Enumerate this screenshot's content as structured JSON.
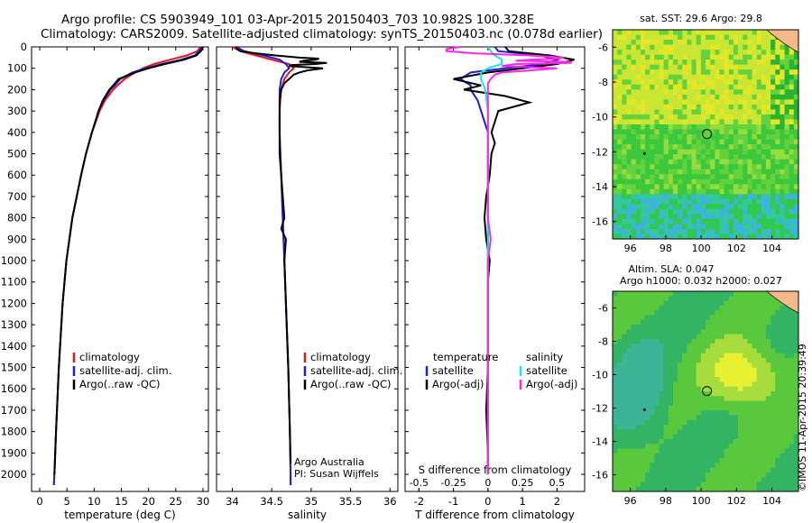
{
  "header": {
    "line1": "Argo profile: CS 5903949_101 03-Apr-2015 20150403_703 10.982S 100.328E",
    "line2": "Climatology: CARS2009. Satellite-adjusted climatology: synTS_20150403.nc (0.078d earlier)"
  },
  "colors": {
    "clim": "#e8141a",
    "sat": "#1d1ddc",
    "argo": "#000000",
    "sal_sat": "#19e6e6",
    "sal_argo": "#ff28e6"
  },
  "chart_data": [
    {
      "type": "line",
      "title": "",
      "xlabel": "temperature (deg C)",
      "ylabel": "",
      "xlim": [
        -1.5,
        31
      ],
      "ylim": [
        2080,
        0
      ],
      "x_ticks": [
        "0",
        "5",
        "10",
        "15",
        "20",
        "25",
        "30"
      ],
      "y_ticks": [
        "0",
        "100",
        "200",
        "300",
        "400",
        "500",
        "600",
        "700",
        "800",
        "900",
        "1000",
        "1100",
        "1200",
        "1300",
        "1400",
        "1500",
        "1600",
        "1700",
        "1800",
        "1900",
        "2000"
      ],
      "legend": [
        "climatology",
        "satellite-adj. clim.",
        "Argo(..raw -QC)"
      ],
      "series": [
        {
          "name": "climatology",
          "color_key": "clim",
          "depth": [
            0,
            20,
            40,
            60,
            80,
            100,
            120,
            150,
            180,
            200,
            250,
            300,
            350,
            400,
            500,
            600,
            800,
            1000,
            1200,
            1500,
            1800,
            2000,
            2050
          ],
          "values": [
            29.5,
            29.0,
            27.0,
            24.0,
            21.0,
            19.0,
            17.5,
            15.6,
            14.3,
            13.5,
            12.0,
            11.0,
            10.3,
            9.6,
            8.5,
            7.6,
            6.0,
            4.9,
            4.2,
            3.5,
            3.0,
            2.7,
            2.6
          ]
        },
        {
          "name": "satellite-adj. clim.",
          "color_key": "sat",
          "depth": [
            0,
            20,
            40,
            60,
            80,
            100,
            120,
            150,
            180,
            200,
            250,
            300,
            350,
            400,
            500,
            600,
            800,
            1000,
            1200,
            1500,
            1800,
            2000,
            2050
          ],
          "values": [
            29.8,
            29.3,
            28.5,
            26.0,
            22.5,
            19.5,
            17.0,
            14.8,
            13.8,
            13.0,
            11.7,
            10.8,
            10.2,
            9.6,
            8.5,
            7.6,
            6.0,
            4.9,
            4.2,
            3.5,
            3.0,
            2.7,
            2.6
          ]
        },
        {
          "name": "Argo(..raw -QC)",
          "color_key": "argo",
          "depth": [
            0,
            20,
            40,
            60,
            80,
            100,
            120,
            150,
            180,
            200,
            250,
            300,
            350,
            400,
            500,
            600,
            800,
            1000,
            1200,
            1500,
            1800,
            2000
          ],
          "values": [
            30.0,
            29.6,
            28.8,
            26.5,
            23.0,
            20.0,
            17.5,
            14.5,
            13.5,
            12.8,
            11.6,
            10.8,
            10.2,
            9.6,
            8.5,
            7.6,
            6.0,
            4.9,
            4.2,
            3.5,
            3.0,
            2.7
          ]
        }
      ]
    },
    {
      "type": "line",
      "title": "",
      "xlabel": "salinity",
      "ylabel": "",
      "xlim": [
        33.8,
        36.1
      ],
      "ylim": [
        2080,
        0
      ],
      "x_ticks": [
        "34",
        "34.5",
        "35",
        "35.5",
        "36"
      ],
      "legend": [
        "climatology",
        "satellite-adj. clim.",
        "Argo(..raw -QC)"
      ],
      "annotation": [
        "Argo Australia",
        "PI: Susan Wijffels"
      ],
      "series": [
        {
          "name": "climatology",
          "color_key": "clim",
          "depth": [
            0,
            20,
            40,
            60,
            80,
            100,
            120,
            150,
            200,
            300,
            400,
            600,
            800,
            1000,
            1200,
            1500,
            1800,
            2000,
            2050
          ],
          "values": [
            34.0,
            34.1,
            34.3,
            34.5,
            34.72,
            34.78,
            34.72,
            34.66,
            34.62,
            34.6,
            34.6,
            34.62,
            34.64,
            34.66,
            34.68,
            34.71,
            34.73,
            34.74,
            34.74
          ]
        },
        {
          "name": "satellite-adj. clim.",
          "color_key": "sat",
          "depth": [
            0,
            20,
            40,
            60,
            80,
            100,
            120,
            150,
            200,
            300,
            400,
            600,
            800,
            1000,
            1200,
            1500,
            1800,
            2000,
            2050
          ],
          "values": [
            34.05,
            34.15,
            34.4,
            34.6,
            34.68,
            34.72,
            34.66,
            34.62,
            34.6,
            34.6,
            34.6,
            34.62,
            34.64,
            34.66,
            34.68,
            34.71,
            34.73,
            34.74,
            34.74
          ]
        },
        {
          "name": "Argo(..raw -QC)",
          "color_key": "argo",
          "depth": [
            0,
            10,
            20,
            30,
            40,
            50,
            55,
            60,
            65,
            70,
            75,
            80,
            85,
            90,
            100,
            110,
            120,
            130,
            150,
            170,
            200,
            250,
            300,
            400,
            500,
            600,
            700,
            800,
            850,
            900,
            1000,
            1200,
            1500,
            1800,
            1950
          ],
          "values": [
            34.05,
            34.06,
            34.1,
            34.3,
            34.55,
            34.85,
            35.1,
            35.05,
            34.9,
            34.85,
            35.2,
            35.05,
            34.75,
            34.72,
            35.15,
            34.95,
            34.85,
            34.78,
            34.72,
            34.66,
            34.62,
            34.6,
            34.6,
            34.6,
            34.6,
            34.62,
            34.64,
            34.66,
            34.62,
            34.68,
            34.66,
            34.68,
            34.71,
            34.73,
            34.74
          ]
        }
      ]
    },
    {
      "type": "line",
      "title": "",
      "xlabel": "T difference from climatology",
      "x2label": "S difference from climatology",
      "xlim": [
        -2.4,
        2.8
      ],
      "x2lim": [
        -0.6,
        0.7
      ],
      "ylim": [
        2080,
        0
      ],
      "x_ticks": [
        "-2",
        "-1",
        "0",
        "1",
        "2"
      ],
      "x2_ticks": [
        "-0.5",
        "-0.25",
        "0",
        "0.25",
        "0.5"
      ],
      "legend_headers": [
        "temperature",
        "salinity"
      ],
      "legend": [
        "satellite",
        "Argo(-adj)",
        "satellite",
        "Argo(-adj)"
      ],
      "series": [
        {
          "name": "T satellite",
          "color_key": "sat",
          "depth": [
            0,
            20,
            40,
            60,
            80,
            100,
            120,
            150,
            180,
            200,
            250,
            300,
            400,
            600,
            1000,
            1500,
            2000
          ],
          "values": [
            0.2,
            0.3,
            1.5,
            2.0,
            1.6,
            0.5,
            -0.5,
            -0.8,
            -0.5,
            -0.5,
            -0.3,
            -0.2,
            0,
            0,
            0,
            0,
            0
          ]
        },
        {
          "name": "T Argo(-adj)",
          "color_key": "argo",
          "depth": [
            0,
            20,
            40,
            60,
            80,
            100,
            120,
            150,
            180,
            200,
            230,
            260,
            300,
            350,
            400,
            450,
            500,
            600,
            700,
            800,
            900,
            1000,
            1100,
            1300,
            1500,
            1700,
            1900,
            2000
          ],
          "values": [
            0.5,
            0.6,
            1.8,
            2.5,
            2.0,
            1.0,
            0.0,
            -1.0,
            -0.2,
            -0.7,
            0.5,
            1.2,
            0.3,
            0.2,
            0.1,
            0.2,
            0.1,
            0.05,
            -0.05,
            -0.1,
            -0.05,
            0.05,
            0,
            0,
            0,
            -0.05,
            0,
            0
          ]
        },
        {
          "name": "S satellite",
          "color_key": "sal_sat",
          "axis": "x2",
          "depth": [
            0,
            20,
            40,
            60,
            80,
            100,
            120,
            150,
            200,
            300,
            400,
            600,
            1000,
            1500,
            2000
          ],
          "values": [
            0.0,
            0.02,
            0.05,
            0.1,
            0.1,
            0.0,
            -0.05,
            -0.05,
            -0.02,
            0,
            0,
            0,
            0,
            0,
            0
          ]
        },
        {
          "name": "S Argo(-adj)",
          "color_key": "sal_argo",
          "axis": "x2",
          "depth": [
            0,
            10,
            20,
            30,
            40,
            50,
            55,
            60,
            65,
            70,
            75,
            80,
            90,
            100,
            110,
            120,
            130,
            150,
            170,
            200,
            300,
            400,
            600,
            800,
            900,
            1000,
            1500,
            2000
          ],
          "values": [
            -0.2,
            -0.3,
            -0.3,
            -0.1,
            0.3,
            0.55,
            0.5,
            0.3,
            0.2,
            0.6,
            0.6,
            0.2,
            0.1,
            0.5,
            0.3,
            0.1,
            0.05,
            0.02,
            0.0,
            0.0,
            0.0,
            0.0,
            0.0,
            0.0,
            0.02,
            0.0,
            0.0,
            0.0
          ]
        }
      ]
    }
  ],
  "maps": {
    "sst_title": "sat. SST: 29.6  Argo: 29.8",
    "sla_title1": "Altim. SLA: 0.047",
    "sla_title2": "Argo h1000: 0.032  h2000: 0.027",
    "lon_ticks": [
      "96",
      "98",
      "100",
      "102",
      "104"
    ],
    "lat_ticks": [
      "-6",
      "-8",
      "-10",
      "-12",
      "-14",
      "-16"
    ],
    "lon_range": [
      95,
      105.5
    ],
    "lat_range": [
      -17,
      -5
    ],
    "profile_lon": 100.328,
    "profile_lat": -10.982
  },
  "footer": {
    "credit": "©IMOS 11-Apr-2015 20:39:49"
  }
}
